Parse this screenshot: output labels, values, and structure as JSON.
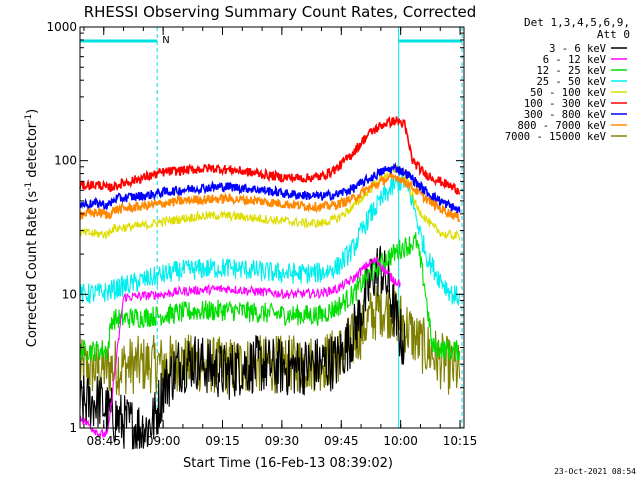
{
  "chart_data": {
    "type": "line",
    "title": "RHESSI Observing Summary Count Rates, Corrected",
    "xlabel": "Start Time (16-Feb-13 08:39:02)",
    "ylabel": "Corrected Count Rate (s",
    "ylabel_sup1": "-1",
    "ylabel_mid": " detector",
    "ylabel_sup2": "-1",
    "ylabel_end": ")",
    "yscale": "log",
    "ylim": [
      1,
      1000
    ],
    "xlim_minutes": [
      39,
      136
    ],
    "y_ticks": [
      {
        "value": 1,
        "label": "1"
      },
      {
        "value": 10,
        "label": "10"
      },
      {
        "value": 100,
        "label": "100"
      },
      {
        "value": 1000,
        "label": "1000"
      }
    ],
    "x_ticks": [
      {
        "minute": 45,
        "label": "08:45"
      },
      {
        "minute": 60,
        "label": "09:00"
      },
      {
        "minute": 75,
        "label": "09:15"
      },
      {
        "minute": 90,
        "label": "09:30"
      },
      {
        "minute": 105,
        "label": "09:45"
      },
      {
        "minute": 120,
        "label": "10:00"
      },
      {
        "minute": 135,
        "label": "10:15"
      }
    ],
    "legend_header": [
      "Det 1,3,4,5,6,9,",
      "Att 0"
    ],
    "annotation_N": "N",
    "night_intervals": [
      [
        39,
        58.5
      ],
      [
        119.5,
        135.5
      ]
    ],
    "footer_date": "23-Oct-2021 08:54",
    "series": [
      {
        "name": "3 - 6 keV",
        "color": "#000000",
        "x": [
          39,
          44,
          46,
          50,
          54,
          56,
          58,
          60,
          64,
          68,
          72,
          76,
          80,
          84,
          88,
          92,
          96,
          100,
          104,
          108,
          111,
          113,
          115,
          117,
          119,
          121
        ],
        "y": [
          1.5,
          1.6,
          1.3,
          1.1,
          1.0,
          1.0,
          1.2,
          2.0,
          3.0,
          3.2,
          2.8,
          2.6,
          2.9,
          3.0,
          2.9,
          2.8,
          2.9,
          3.0,
          3.2,
          5,
          9,
          14,
          16,
          11,
          6,
          4
        ]
      },
      {
        "name": "6 - 12 keV",
        "color": "#ff00ff",
        "x": [
          39,
          44,
          46,
          50,
          60,
          64,
          70,
          76,
          84,
          92,
          100,
          104,
          108,
          110,
          112,
          114,
          116,
          118,
          120
        ],
        "y": [
          1.2,
          0.9,
          0.9,
          9.5,
          10,
          10.5,
          10.8,
          11,
          10.5,
          10,
          10.2,
          11,
          13,
          15,
          17,
          18,
          15,
          13,
          12
        ]
      },
      {
        "name": "12 - 25 keV",
        "color": "#00dd00",
        "x": [
          39,
          46,
          47,
          56,
          60,
          68,
          76,
          84,
          92,
          100,
          104,
          108,
          112,
          116,
          120,
          124,
          126,
          128,
          130,
          132,
          134,
          135
        ],
        "y": [
          3.8,
          3.8,
          6.5,
          6.8,
          7,
          7.5,
          7.6,
          7.3,
          7,
          7,
          8,
          10,
          14,
          18,
          22,
          25,
          12,
          4,
          4,
          3.8,
          3.8,
          3.8
        ]
      },
      {
        "name": "25 - 50 keV",
        "color": "#00eeee",
        "x": [
          39,
          44,
          46,
          50,
          56,
          60,
          64,
          70,
          76,
          82,
          88,
          94,
          100,
          104,
          108,
          112,
          116,
          119,
          121,
          123,
          125,
          127,
          130,
          133,
          135
        ],
        "y": [
          10,
          10.2,
          10.5,
          11.5,
          13,
          14,
          15,
          15.5,
          15.8,
          15.2,
          14.5,
          14.3,
          14.5,
          16,
          22,
          38,
          55,
          68,
          70,
          50,
          28,
          18,
          13,
          10,
          9.5
        ]
      },
      {
        "name": "50 - 100 keV",
        "color": "#dddd00",
        "x": [
          39,
          46,
          47,
          52,
          56,
          60,
          68,
          74,
          80,
          88,
          96,
          100,
          104,
          108,
          112,
          116,
          119,
          121,
          124,
          128,
          131,
          135
        ],
        "y": [
          29,
          28,
          31,
          32,
          33,
          35,
          38,
          39,
          38,
          36,
          34,
          34,
          37,
          45,
          60,
          78,
          88,
          80,
          45,
          32,
          28,
          27
        ]
      },
      {
        "name": "100 - 300 keV",
        "color": "#ff0000",
        "x": [
          39,
          44,
          46,
          50,
          56,
          60,
          66,
          72,
          78,
          84,
          90,
          96,
          100,
          104,
          108,
          112,
          116,
          119,
          121,
          123,
          126,
          130,
          135
        ],
        "y": [
          65,
          66,
          62,
          68,
          76,
          82,
          85,
          88,
          85,
          80,
          75,
          74,
          76,
          88,
          115,
          160,
          190,
          200,
          185,
          100,
          80,
          70,
          60
        ]
      },
      {
        "name": "300 - 800 keV",
        "color": "#0000ff",
        "x": [
          39,
          44,
          46,
          48,
          56,
          60,
          68,
          76,
          84,
          92,
          100,
          104,
          108,
          112,
          116,
          119,
          122,
          126,
          130,
          135
        ],
        "y": [
          47,
          48,
          46,
          52,
          55,
          58,
          62,
          64,
          61,
          56,
          54,
          56,
          62,
          73,
          85,
          88,
          78,
          60,
          50,
          42
        ]
      },
      {
        "name": "800 - 7000 keV",
        "color": "#ff8800",
        "x": [
          39,
          44,
          46,
          48,
          56,
          60,
          68,
          76,
          84,
          92,
          100,
          104,
          108,
          112,
          116,
          119,
          122,
          126,
          130,
          135
        ],
        "y": [
          40,
          41,
          39,
          43,
          46,
          48,
          51,
          52,
          50,
          47,
          45,
          47,
          52,
          62,
          72,
          76,
          67,
          53,
          44,
          37
        ]
      },
      {
        "name": "7000 - 15000 keV",
        "color": "#808000",
        "x": [
          39,
          44,
          50,
          56,
          60,
          64,
          70,
          76,
          84,
          92,
          100,
          104,
          108,
          112,
          115,
          118,
          121,
          124,
          127,
          130,
          133,
          135
        ],
        "y": [
          2.8,
          2.8,
          2.9,
          3.0,
          3.0,
          3.1,
          3.0,
          2.9,
          3.0,
          3.0,
          3.1,
          3.5,
          4.5,
          6.5,
          8,
          7.5,
          6,
          4.5,
          3.8,
          3.2,
          2.8,
          2.6
        ]
      }
    ]
  }
}
